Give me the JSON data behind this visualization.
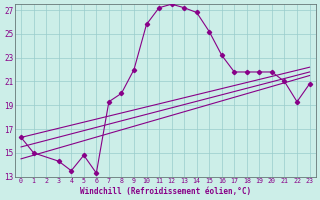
{
  "xlabel": "Windchill (Refroidissement éolien,°C)",
  "background_color": "#cceee8",
  "line_color": "#880088",
  "grid_color": "#99cccc",
  "xlim": [
    -0.5,
    23.5
  ],
  "ylim": [
    13,
    27.5
  ],
  "yticks": [
    13,
    15,
    17,
    19,
    21,
    23,
    25,
    27
  ],
  "xticks": [
    0,
    1,
    2,
    3,
    4,
    5,
    6,
    7,
    8,
    9,
    10,
    11,
    12,
    13,
    14,
    15,
    16,
    17,
    18,
    19,
    20,
    21,
    22,
    23
  ],
  "main_x": [
    0,
    1,
    3,
    4,
    5,
    6,
    7,
    8,
    9,
    10,
    11,
    12,
    13,
    14,
    15,
    16,
    17,
    18,
    19,
    20,
    21,
    22,
    23
  ],
  "main_y": [
    16.3,
    15.0,
    14.3,
    13.5,
    14.8,
    13.3,
    19.3,
    20.0,
    22.0,
    25.8,
    27.2,
    27.5,
    27.2,
    26.8,
    25.2,
    23.2,
    21.8,
    21.8,
    21.8,
    21.8,
    21.0,
    19.3,
    20.8
  ],
  "line1_x": [
    0,
    23
  ],
  "line1_y": [
    14.5,
    21.5
  ],
  "line2_x": [
    0,
    23
  ],
  "line2_y": [
    15.5,
    21.8
  ],
  "line3_x": [
    0,
    23
  ],
  "line3_y": [
    16.3,
    22.2
  ]
}
